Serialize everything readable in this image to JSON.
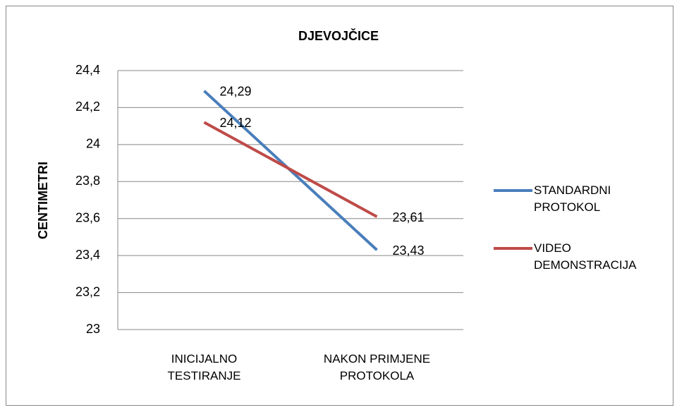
{
  "chart_data": {
    "type": "line",
    "title": "DJEVOJČICE",
    "y_label": "CENTIMETRI",
    "categories": [
      "INICIJALNO TESTIRANJE",
      "NAKON PRIMJENE PROTOKOLA"
    ],
    "series": [
      {
        "name": "STANDARDNI PROTOKOL",
        "color": "#4a7ebb",
        "values": [
          24.29,
          23.43
        ],
        "value_labels": [
          "24,29",
          "23,43"
        ]
      },
      {
        "name": "VIDEO DEMONSTRACIJA",
        "color": "#be4b48",
        "values": [
          24.12,
          23.61
        ],
        "value_labels": [
          "24,12",
          "23,61"
        ]
      }
    ],
    "ylim": [
      23,
      24.4
    ],
    "yticks": [
      23,
      {
        "value": 23.2,
        "label": "23,2"
      },
      {
        "value": 23.4,
        "label": "23,4"
      },
      {
        "value": 23.6,
        "label": "23,6"
      },
      {
        "value": 23.8,
        "label": "23,8"
      },
      24,
      {
        "value": 24.2,
        "label": "24,2"
      },
      {
        "value": 24.4,
        "label": "24,4"
      }
    ],
    "grid": true,
    "legend": "right"
  }
}
